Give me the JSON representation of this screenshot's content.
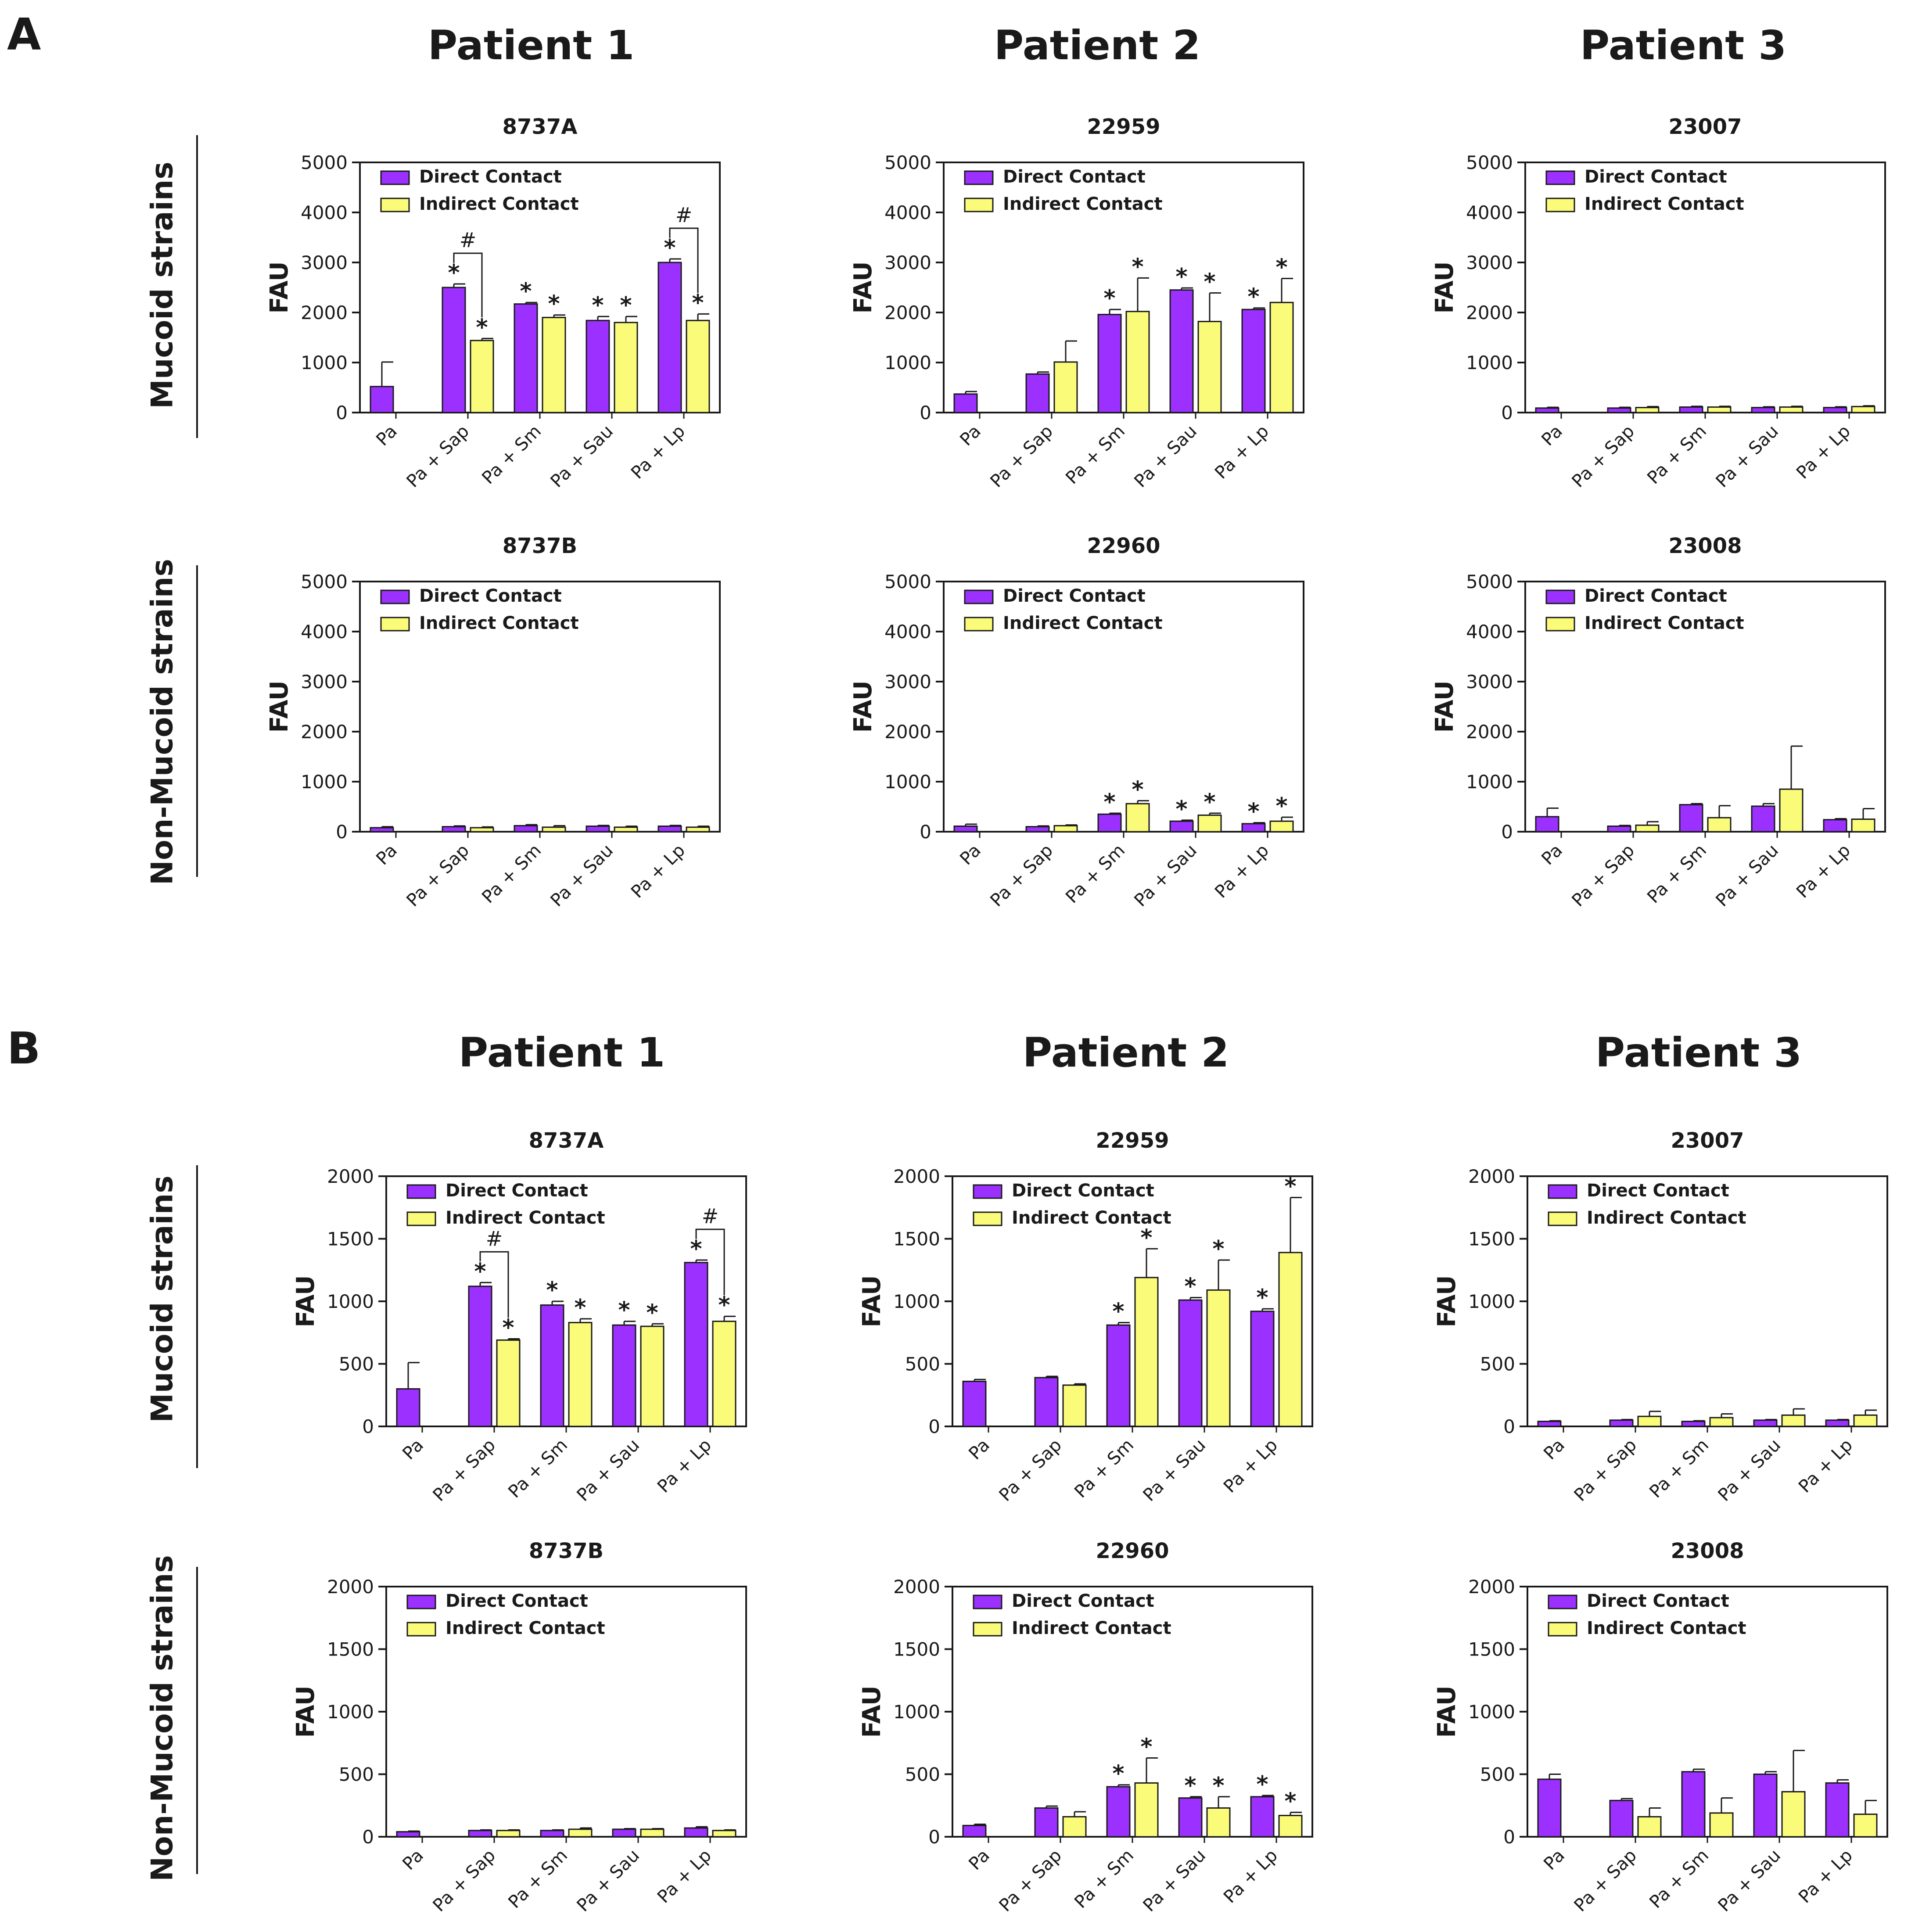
{
  "colors": {
    "direct": "#9b30ff",
    "indirect": "#fbfb7a",
    "axis": "#1a1a1a"
  },
  "figure": {
    "A": {
      "label": "A",
      "patients": [
        "Patient 1",
        "Patient 2",
        "Patient 3"
      ],
      "rows": [
        "Mucoid strains",
        "Non-Mucoid strains"
      ]
    },
    "B": {
      "label": "B",
      "patients": [
        "Patient 1",
        "Patient 2",
        "Patient 3"
      ],
      "rows": [
        "Mucoid strains",
        "Non-Mucoid strains"
      ]
    }
  },
  "chart_data": [
    {
      "id": "A-8737A",
      "panel": "A",
      "type": "bar",
      "title": "8737A",
      "ylabel": "FAU",
      "ylim": [
        0,
        5000
      ],
      "yticks": [
        0,
        1000,
        2000,
        3000,
        4000,
        5000
      ],
      "categories": [
        "Pa",
        "Pa + Sap",
        "Pa + Sm",
        "Pa + Sau",
        "Pa + Lp"
      ],
      "legend": [
        "Direct Contact",
        "Indirect Contact"
      ],
      "series": [
        {
          "name": "Direct Contact",
          "values": [
            520,
            2500,
            2170,
            1840,
            3000
          ],
          "errors": [
            490,
            70,
            30,
            80,
            70
          ],
          "stars": [
            false,
            true,
            true,
            true,
            true
          ]
        },
        {
          "name": "Indirect Contact",
          "values": [
            null,
            1440,
            1900,
            1800,
            1840
          ],
          "errors": [
            null,
            40,
            50,
            120,
            130
          ],
          "stars": [
            false,
            true,
            true,
            true,
            true
          ]
        }
      ],
      "hash_brackets": [
        {
          "category": 1,
          "label": "#"
        },
        {
          "category": 4,
          "label": "#"
        }
      ]
    },
    {
      "id": "A-22959",
      "panel": "A",
      "type": "bar",
      "title": "22959",
      "ylabel": "FAU",
      "ylim": [
        0,
        5000
      ],
      "yticks": [
        0,
        1000,
        2000,
        3000,
        4000,
        5000
      ],
      "categories": [
        "Pa",
        "Pa + Sap",
        "Pa + Sm",
        "Pa + Sau",
        "Pa + Lp"
      ],
      "legend": [
        "Direct Contact",
        "Indirect Contact"
      ],
      "series": [
        {
          "name": "Direct Contact",
          "values": [
            370,
            770,
            1960,
            2450,
            2060
          ],
          "errors": [
            50,
            40,
            100,
            40,
            30
          ],
          "stars": [
            false,
            false,
            true,
            true,
            true
          ]
        },
        {
          "name": "Indirect Contact",
          "values": [
            null,
            1010,
            2020,
            1820,
            2200
          ],
          "errors": [
            null,
            420,
            670,
            570,
            480
          ],
          "stars": [
            false,
            false,
            true,
            true,
            true
          ]
        }
      ],
      "hash_brackets": []
    },
    {
      "id": "A-23007",
      "panel": "A",
      "type": "bar",
      "title": "23007",
      "ylabel": "FAU",
      "ylim": [
        0,
        5000
      ],
      "yticks": [
        0,
        1000,
        2000,
        3000,
        4000,
        5000
      ],
      "categories": [
        "Pa",
        "Pa + Sap",
        "Pa + Sm",
        "Pa + Sau",
        "Pa + Lp"
      ],
      "legend": [
        "Direct Contact",
        "Indirect Contact"
      ],
      "series": [
        {
          "name": "Direct Contact",
          "values": [
            90,
            90,
            110,
            100,
            100
          ],
          "errors": [
            15,
            15,
            15,
            15,
            15
          ],
          "stars": [
            false,
            false,
            false,
            false,
            false
          ]
        },
        {
          "name": "Indirect Contact",
          "values": [
            null,
            100,
            110,
            110,
            120
          ],
          "errors": [
            null,
            20,
            15,
            15,
            15
          ],
          "stars": [
            false,
            false,
            false,
            false,
            false
          ]
        }
      ],
      "hash_brackets": []
    },
    {
      "id": "A-8737B",
      "panel": "A",
      "type": "bar",
      "title": "8737B",
      "ylabel": "FAU",
      "ylim": [
        0,
        5000
      ],
      "yticks": [
        0,
        1000,
        2000,
        3000,
        4000,
        5000
      ],
      "categories": [
        "Pa",
        "Pa + Sap",
        "Pa + Sm",
        "Pa + Sau",
        "Pa + Lp"
      ],
      "legend": [
        "Direct Contact",
        "Indirect Contact"
      ],
      "series": [
        {
          "name": "Direct Contact",
          "values": [
            80,
            100,
            120,
            110,
            110
          ],
          "errors": [
            20,
            15,
            20,
            15,
            15
          ],
          "stars": [
            false,
            false,
            false,
            false,
            false
          ]
        },
        {
          "name": "Indirect Contact",
          "values": [
            null,
            80,
            90,
            90,
            90
          ],
          "errors": [
            null,
            15,
            30,
            20,
            20
          ],
          "stars": [
            false,
            false,
            false,
            false,
            false
          ]
        }
      ],
      "hash_brackets": []
    },
    {
      "id": "A-22960",
      "panel": "A",
      "type": "bar",
      "title": "22960",
      "ylabel": "FAU",
      "ylim": [
        0,
        5000
      ],
      "yticks": [
        0,
        1000,
        2000,
        3000,
        4000,
        5000
      ],
      "categories": [
        "Pa",
        "Pa + Sap",
        "Pa + Sm",
        "Pa + Sau",
        "Pa + Lp"
      ],
      "legend": [
        "Direct Contact",
        "Indirect Contact"
      ],
      "series": [
        {
          "name": "Direct Contact",
          "values": [
            110,
            100,
            350,
            210,
            160
          ],
          "errors": [
            40,
            15,
            20,
            20,
            20
          ],
          "stars": [
            false,
            false,
            true,
            true,
            true
          ]
        },
        {
          "name": "Indirect Contact",
          "values": [
            null,
            120,
            560,
            330,
            210
          ],
          "errors": [
            null,
            15,
            60,
            40,
            80
          ],
          "stars": [
            false,
            false,
            true,
            true,
            true
          ]
        }
      ],
      "hash_brackets": []
    },
    {
      "id": "A-23008",
      "panel": "A",
      "type": "bar",
      "title": "23008",
      "ylabel": "FAU",
      "ylim": [
        0,
        5000
      ],
      "yticks": [
        0,
        1000,
        2000,
        3000,
        4000,
        5000
      ],
      "categories": [
        "Pa",
        "Pa + Sap",
        "Pa + Sm",
        "Pa + Sau",
        "Pa + Lp"
      ],
      "legend": [
        "Direct Contact",
        "Indirect Contact"
      ],
      "series": [
        {
          "name": "Direct Contact",
          "values": [
            300,
            110,
            540,
            510,
            240
          ],
          "errors": [
            170,
            15,
            20,
            50,
            20
          ],
          "stars": [
            false,
            false,
            false,
            false,
            false
          ]
        },
        {
          "name": "Indirect Contact",
          "values": [
            null,
            130,
            280,
            850,
            250
          ],
          "errors": [
            null,
            70,
            240,
            860,
            210
          ],
          "stars": [
            false,
            false,
            false,
            false,
            false
          ]
        }
      ],
      "hash_brackets": []
    },
    {
      "id": "B-8737A",
      "panel": "B",
      "type": "bar",
      "title": "8737A",
      "ylabel": "FAU",
      "ylim": [
        0,
        2000
      ],
      "yticks": [
        0,
        500,
        1000,
        1500,
        2000
      ],
      "categories": [
        "Pa",
        "Pa + Sap",
        "Pa + Sm",
        "Pa + Sau",
        "Pa + Lp"
      ],
      "legend": [
        "Direct Contact",
        "Indirect Contact"
      ],
      "series": [
        {
          "name": "Direct Contact",
          "values": [
            300,
            1120,
            970,
            810,
            1310
          ],
          "errors": [
            210,
            30,
            30,
            30,
            20
          ],
          "stars": [
            false,
            true,
            true,
            true,
            true
          ]
        },
        {
          "name": "Indirect Contact",
          "values": [
            null,
            690,
            830,
            800,
            840
          ],
          "errors": [
            null,
            10,
            30,
            20,
            40
          ],
          "stars": [
            false,
            true,
            true,
            true,
            true
          ]
        }
      ],
      "hash_brackets": [
        {
          "category": 1,
          "label": "#"
        },
        {
          "category": 4,
          "label": "#"
        }
      ]
    },
    {
      "id": "B-22959",
      "panel": "B",
      "type": "bar",
      "title": "22959",
      "ylabel": "FAU",
      "ylim": [
        0,
        2000
      ],
      "yticks": [
        0,
        500,
        1000,
        1500,
        2000
      ],
      "categories": [
        "Pa",
        "Pa + Sap",
        "Pa + Sm",
        "Pa + Sau",
        "Pa + Lp"
      ],
      "legend": [
        "Direct Contact",
        "Indirect Contact"
      ],
      "series": [
        {
          "name": "Direct Contact",
          "values": [
            360,
            390,
            810,
            1010,
            920
          ],
          "errors": [
            15,
            10,
            20,
            20,
            20
          ],
          "stars": [
            false,
            false,
            true,
            true,
            true
          ]
        },
        {
          "name": "Indirect Contact",
          "values": [
            null,
            330,
            1190,
            1090,
            1390
          ],
          "errors": [
            null,
            10,
            230,
            240,
            440
          ],
          "stars": [
            false,
            false,
            true,
            true,
            true
          ]
        }
      ],
      "hash_brackets": []
    },
    {
      "id": "B-23007",
      "panel": "B",
      "type": "bar",
      "title": "23007",
      "ylabel": "FAU",
      "ylim": [
        0,
        2000
      ],
      "yticks": [
        0,
        500,
        1000,
        1500,
        2000
      ],
      "categories": [
        "Pa",
        "Pa + Sap",
        "Pa + Sm",
        "Pa + Sau",
        "Pa + Lp"
      ],
      "legend": [
        "Direct Contact",
        "Indirect Contact"
      ],
      "series": [
        {
          "name": "Direct Contact",
          "values": [
            40,
            50,
            40,
            50,
            50
          ],
          "errors": [
            5,
            5,
            5,
            5,
            5
          ],
          "stars": [
            false,
            false,
            false,
            false,
            false
          ]
        },
        {
          "name": "Indirect Contact",
          "values": [
            null,
            80,
            70,
            90,
            90
          ],
          "errors": [
            null,
            40,
            30,
            50,
            40
          ],
          "stars": [
            false,
            false,
            false,
            false,
            false
          ]
        }
      ],
      "hash_brackets": []
    },
    {
      "id": "B-8737B",
      "panel": "B",
      "type": "bar",
      "title": "8737B",
      "ylabel": "FAU",
      "ylim": [
        0,
        2000
      ],
      "yticks": [
        0,
        500,
        1000,
        1500,
        2000
      ],
      "categories": [
        "Pa",
        "Pa + Sap",
        "Pa + Sm",
        "Pa + Sau",
        "Pa + Lp"
      ],
      "legend": [
        "Direct Contact",
        "Indirect Contact"
      ],
      "series": [
        {
          "name": "Direct Contact",
          "values": [
            40,
            50,
            50,
            60,
            70
          ],
          "errors": [
            5,
            5,
            5,
            5,
            10
          ],
          "stars": [
            false,
            false,
            false,
            false,
            false
          ]
        },
        {
          "name": "Indirect Contact",
          "values": [
            null,
            50,
            60,
            60,
            50
          ],
          "errors": [
            null,
            5,
            10,
            5,
            5
          ],
          "stars": [
            false,
            false,
            false,
            false,
            false
          ]
        }
      ],
      "hash_brackets": []
    },
    {
      "id": "B-22960",
      "panel": "B",
      "type": "bar",
      "title": "22960",
      "ylabel": "FAU",
      "ylim": [
        0,
        2000
      ],
      "yticks": [
        0,
        500,
        1000,
        1500,
        2000
      ],
      "categories": [
        "Pa",
        "Pa + Sap",
        "Pa + Sm",
        "Pa + Sau",
        "Pa + Lp"
      ],
      "legend": [
        "Direct Contact",
        "Indirect Contact"
      ],
      "series": [
        {
          "name": "Direct Contact",
          "values": [
            90,
            230,
            400,
            310,
            320
          ],
          "errors": [
            10,
            15,
            15,
            10,
            10
          ],
          "stars": [
            false,
            false,
            true,
            true,
            true
          ]
        },
        {
          "name": "Indirect Contact",
          "values": [
            null,
            160,
            430,
            230,
            170
          ],
          "errors": [
            null,
            40,
            200,
            90,
            25
          ],
          "stars": [
            false,
            false,
            true,
            true,
            true
          ]
        }
      ],
      "hash_brackets": []
    },
    {
      "id": "B-23008",
      "panel": "B",
      "type": "bar",
      "title": "23008",
      "ylabel": "FAU",
      "ylim": [
        0,
        2000
      ],
      "yticks": [
        0,
        500,
        1000,
        1500,
        2000
      ],
      "categories": [
        "Pa",
        "Pa + Sap",
        "Pa + Sm",
        "Pa + Sau",
        "Pa + Lp"
      ],
      "legend": [
        "Direct Contact",
        "Indirect Contact"
      ],
      "series": [
        {
          "name": "Direct Contact",
          "values": [
            460,
            290,
            520,
            500,
            430
          ],
          "errors": [
            40,
            15,
            20,
            20,
            25
          ],
          "stars": [
            false,
            false,
            false,
            false,
            false
          ]
        },
        {
          "name": "Indirect Contact",
          "values": [
            null,
            160,
            190,
            360,
            180
          ],
          "errors": [
            null,
            70,
            120,
            330,
            110
          ],
          "stars": [
            false,
            false,
            false,
            false,
            false
          ]
        }
      ],
      "hash_brackets": []
    }
  ]
}
